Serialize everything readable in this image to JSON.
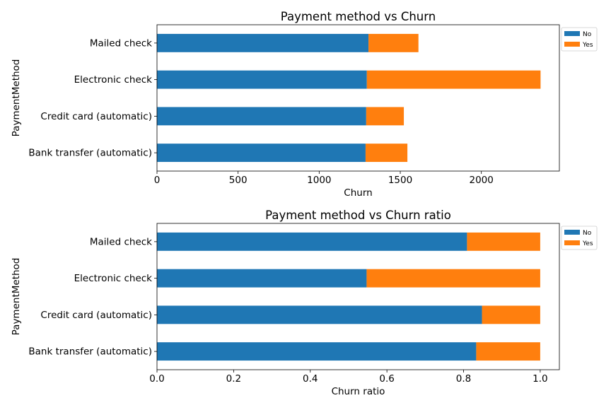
{
  "chart_data": [
    {
      "type": "bar",
      "orientation": "horizontal",
      "stacked": true,
      "title": "Payment method vs Churn",
      "xlabel": "Churn",
      "ylabel": "PaymentMethod",
      "categories": [
        "Bank transfer (automatic)",
        "Credit card (automatic)",
        "Electronic check",
        "Mailed check"
      ],
      "series": [
        {
          "name": "No",
          "color": "#1f77b4",
          "values": [
            1286,
            1290,
            1294,
            1304
          ]
        },
        {
          "name": "Yes",
          "color": "#ff7f0e",
          "values": [
            258,
            232,
            1071,
            308
          ]
        }
      ],
      "xlim": [
        0,
        2481
      ],
      "xticks": [
        0,
        500,
        1000,
        1500,
        2000
      ],
      "xtick_labels": [
        "0",
        "500",
        "1000",
        "1500",
        "2000"
      ],
      "grid": false,
      "legend": "right-outside-top"
    },
    {
      "type": "bar",
      "orientation": "horizontal",
      "stacked": true,
      "title": "Payment method vs Churn ratio",
      "xlabel": "Churn ratio",
      "ylabel": "PaymentMethod",
      "categories": [
        "Bank transfer (automatic)",
        "Credit card (automatic)",
        "Electronic check",
        "Mailed check"
      ],
      "series": [
        {
          "name": "No",
          "color": "#1f77b4",
          "values": [
            0.833,
            0.848,
            0.547,
            0.809
          ]
        },
        {
          "name": "Yes",
          "color": "#ff7f0e",
          "values": [
            0.167,
            0.152,
            0.453,
            0.191
          ]
        }
      ],
      "xlim": [
        0,
        1.05
      ],
      "xticks": [
        0,
        0.2,
        0.4,
        0.6,
        0.8,
        1.0
      ],
      "xtick_labels": [
        "0.0",
        "0.2",
        "0.4",
        "0.6",
        "0.8",
        "1.0"
      ],
      "grid": false,
      "legend": "right-outside-top"
    }
  ]
}
